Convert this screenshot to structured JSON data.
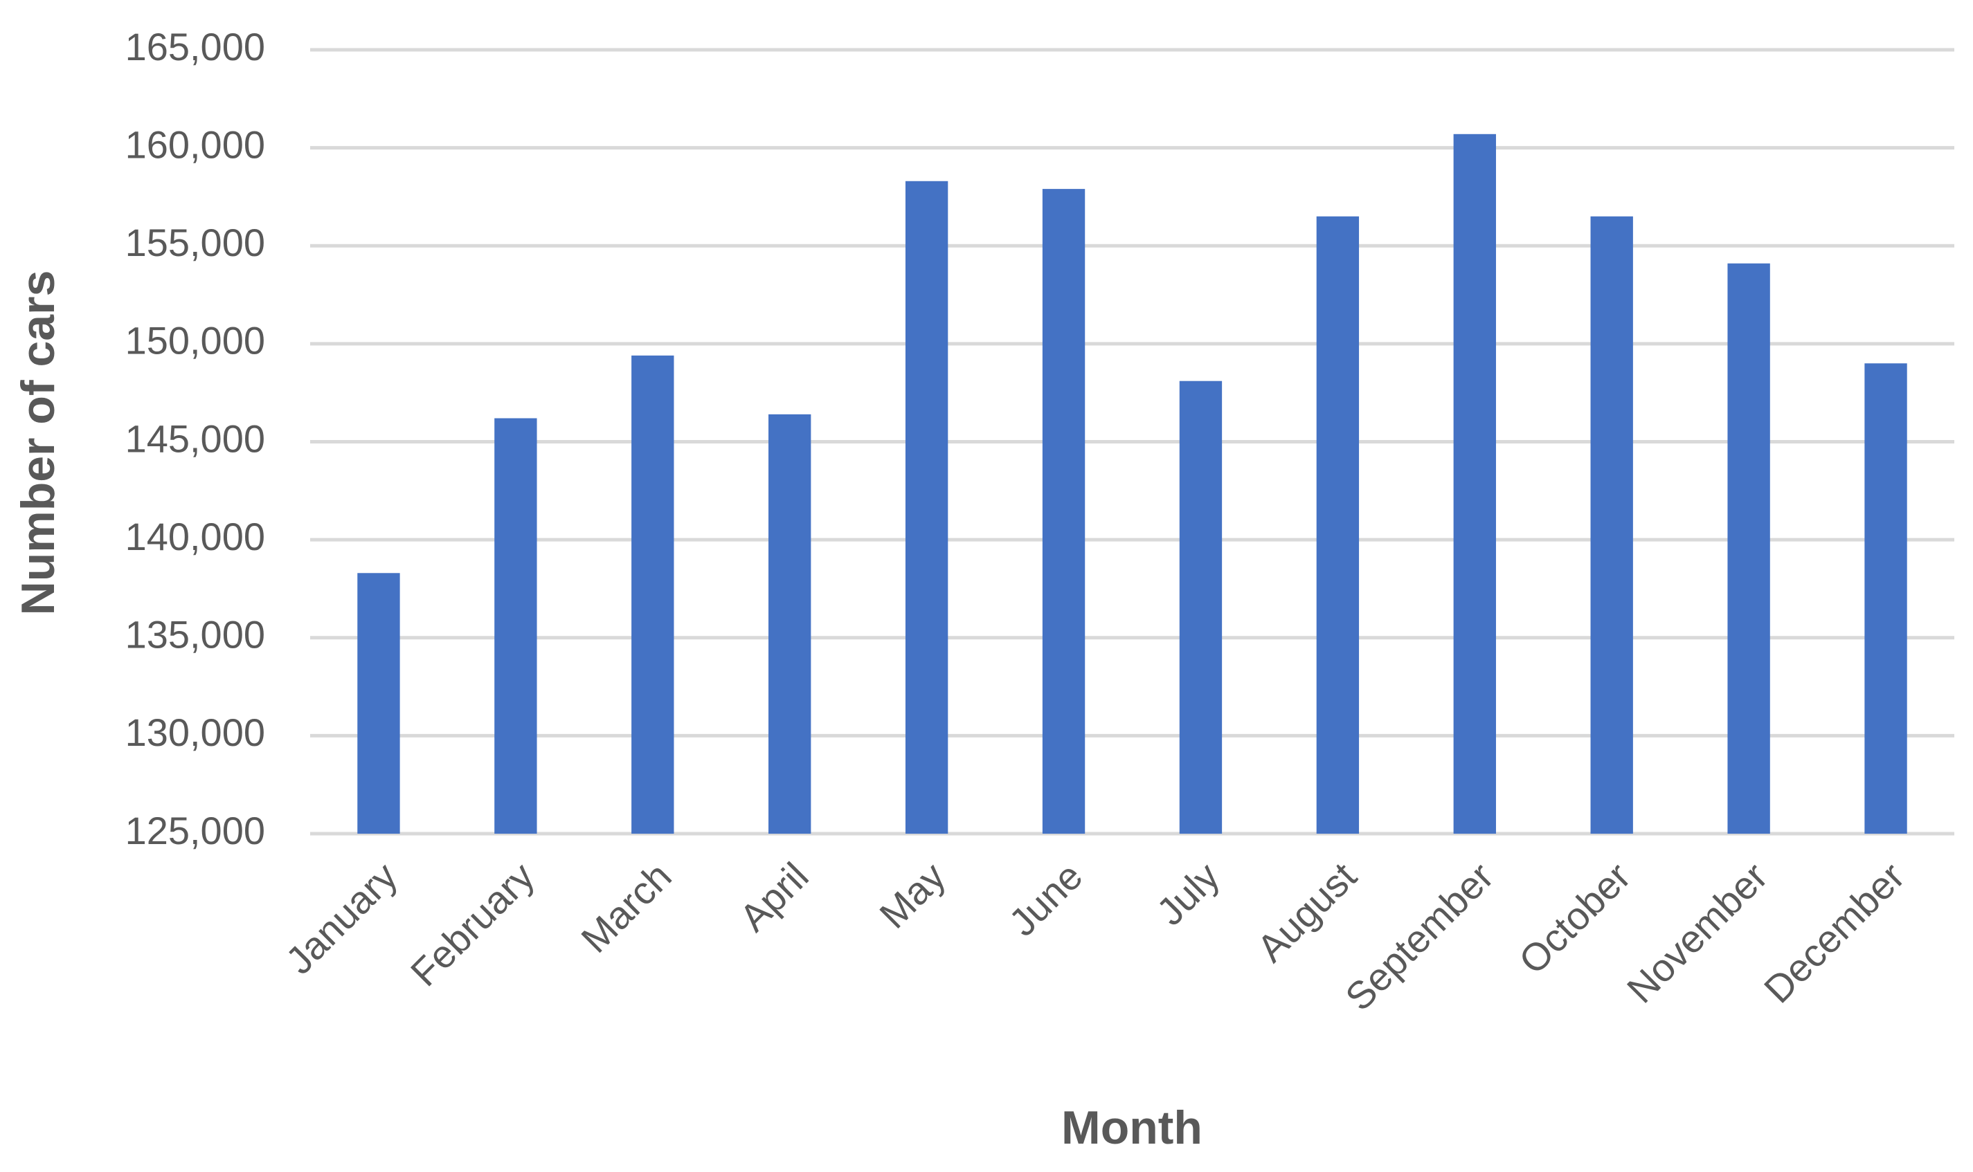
{
  "chart_data": {
    "type": "bar",
    "x_label": "Month",
    "y_label": "Number of cars",
    "categories": [
      "January",
      "February",
      "March",
      "April",
      "May",
      "June",
      "July",
      "August",
      "September",
      "October",
      "November",
      "December"
    ],
    "values": [
      138300,
      146200,
      149400,
      146400,
      158300,
      157900,
      148100,
      156500,
      160700,
      156500,
      154100,
      149000
    ],
    "color": "#4472c4",
    "ylim": [
      125000,
      165000
    ],
    "yticks": [
      {
        "value": 125000,
        "label": "125,000"
      },
      {
        "value": 130000,
        "label": "130,000"
      },
      {
        "value": 135000,
        "label": "135,000"
      },
      {
        "value": 140000,
        "label": "140,000"
      },
      {
        "value": 145000,
        "label": "145,000"
      },
      {
        "value": 150000,
        "label": "150,000"
      },
      {
        "value": 155000,
        "label": "155,000"
      },
      {
        "value": 160000,
        "label": "160,000"
      },
      {
        "value": 165000,
        "label": "165,000"
      }
    ],
    "grid": true
  }
}
